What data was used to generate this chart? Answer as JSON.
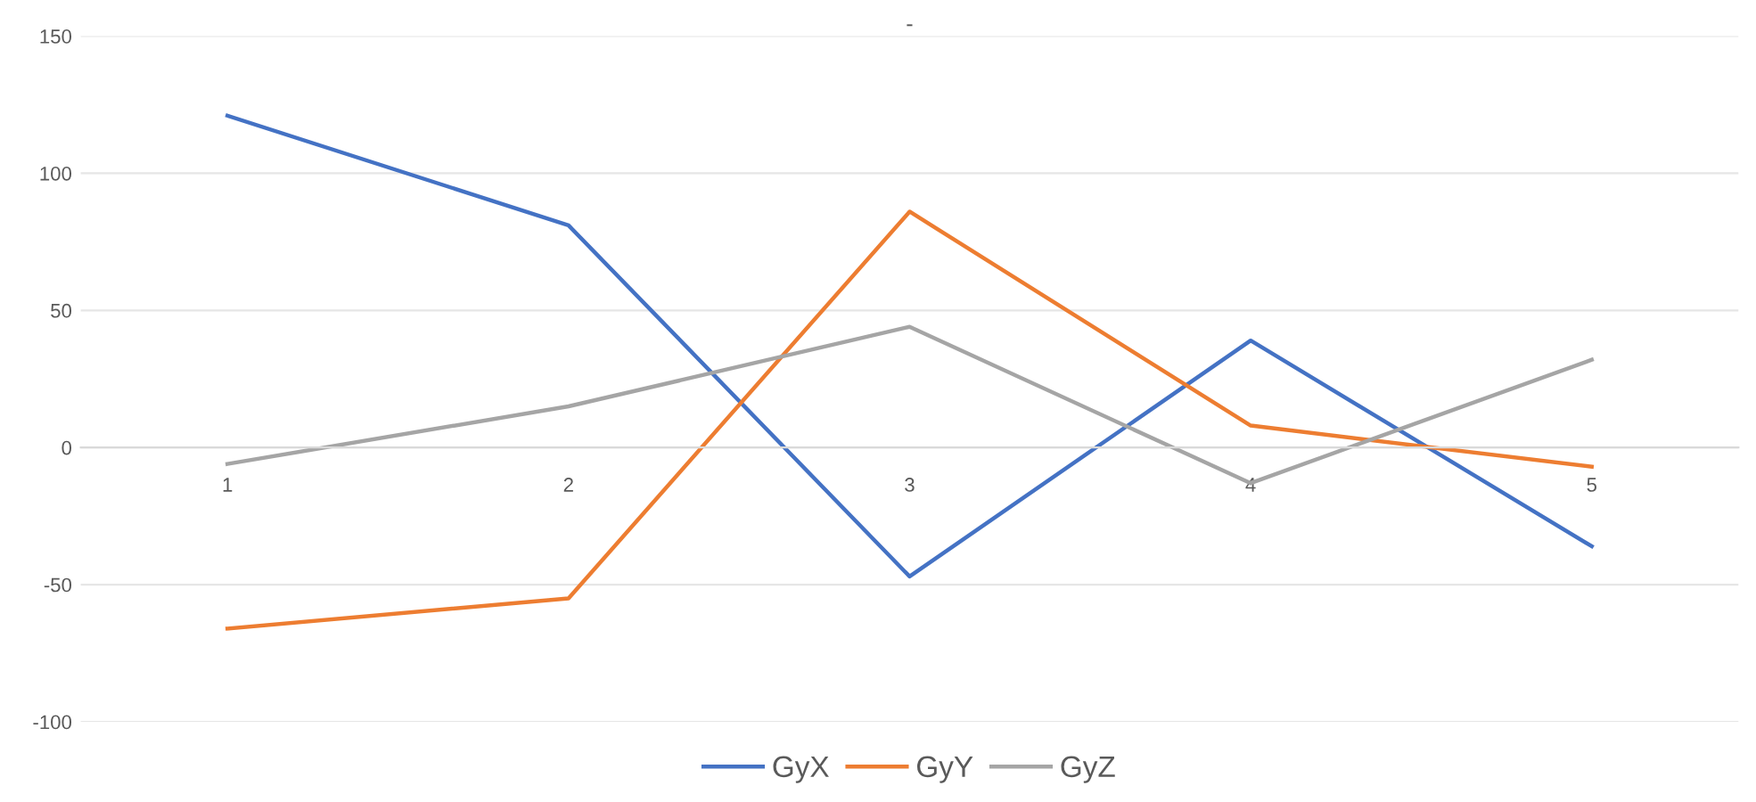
{
  "chart_data": {
    "type": "line",
    "title": "-",
    "categories": [
      "1",
      "2",
      "3",
      "4",
      "5"
    ],
    "series": [
      {
        "name": "GyX",
        "color": "#4472c4",
        "values": [
          121,
          81,
          -47,
          39,
          -36
        ]
      },
      {
        "name": "GyY",
        "color": "#ed7d31",
        "values": [
          -66,
          -55,
          86,
          8,
          -7
        ]
      },
      {
        "name": "GyZ",
        "color": "#a5a5a5",
        "values": [
          -6,
          15,
          44,
          -13,
          32
        ]
      }
    ],
    "ylim": [
      -100,
      150
    ],
    "yticks": [
      -100,
      -50,
      0,
      50,
      100,
      150
    ],
    "grid": "y",
    "legend": "bottom",
    "marker": "none",
    "line_style": "solid"
  }
}
